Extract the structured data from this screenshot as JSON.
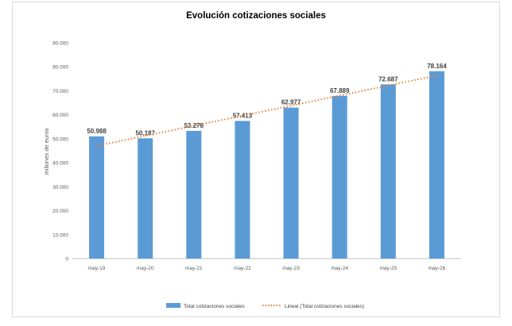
{
  "chart_data": {
    "type": "bar",
    "title": "Evolución cotizaciones sociales",
    "ylabel": "millones de euros",
    "xlabel": "",
    "categories": [
      "may-19",
      "may-20",
      "may-21",
      "may-22",
      "may-23",
      "may-24",
      "may-25",
      "may-26"
    ],
    "series": [
      {
        "name": "Total cotizaciones sociales",
        "values": [
          50988,
          50187,
          53278,
          57413,
          62977,
          67889,
          72687,
          78164
        ],
        "labels": [
          "50.988",
          "50.187",
          "53.278",
          "57.413",
          "62.977",
          "67.889",
          "72.687",
          "78.164"
        ],
        "color": "#5b9bd5"
      }
    ],
    "trendline": {
      "name": "Lineal (Total cotizaciones sociales)",
      "type": "linear",
      "color": "#ed7d31"
    },
    "ylim": [
      0,
      90000
    ],
    "yticks": [
      0,
      10000,
      20000,
      30000,
      40000,
      50000,
      60000,
      70000,
      80000,
      90000
    ],
    "ytick_labels": [
      "0",
      "10.000",
      "20.000",
      "30.000",
      "40.000",
      "50.000",
      "60.000",
      "70.000",
      "80.000",
      "90.000"
    ],
    "grid": false,
    "legend_position": "bottom"
  }
}
